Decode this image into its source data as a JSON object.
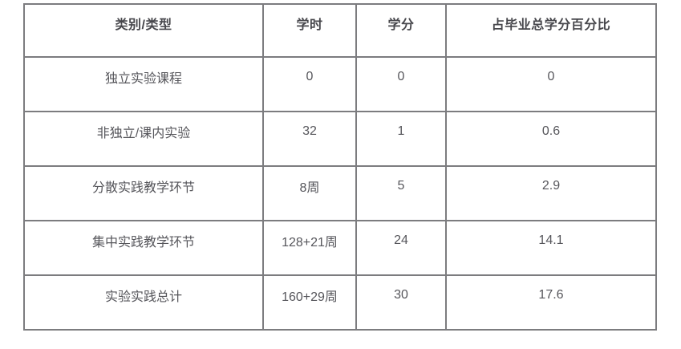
{
  "chart_data": {
    "type": "table",
    "title": "",
    "columns": [
      "类别/类型",
      "学时",
      "学分",
      "占毕业总学分百分比"
    ],
    "rows": [
      [
        "独立实验课程",
        "0",
        "0",
        "0"
      ],
      [
        "非独立/课内实验",
        "32",
        "1",
        "0.6"
      ],
      [
        "分散实践教学环节",
        "8周",
        "5",
        "2.9"
      ],
      [
        "集中实践教学环节",
        "128+21周",
        "24",
        "14.1"
      ],
      [
        "实验实践总计",
        "160+29周",
        "30",
        "17.6"
      ]
    ]
  },
  "table": {
    "headers": [
      "类别/类型",
      "学时",
      "学分",
      "占毕业总学分百分比"
    ],
    "rows": [
      {
        "category": "独立实验课程",
        "hours": "0",
        "credits": "0",
        "percentage": "0"
      },
      {
        "category": "非独立/课内实验",
        "hours": "32",
        "credits": "1",
        "percentage": "0.6"
      },
      {
        "category": "分散实践教学环节",
        "hours": "8周",
        "credits": "5",
        "percentage": "2.9"
      },
      {
        "category": "集中实践教学环节",
        "hours": "128+21周",
        "credits": "24",
        "percentage": "14.1"
      },
      {
        "category": "实验实践总计",
        "hours": "160+29周",
        "credits": "30",
        "percentage": "17.6"
      }
    ],
    "colors": {
      "border": "#7c7c7f",
      "header_text": "#47474c",
      "body_text": "#56565b",
      "background": "#ffffff"
    }
  }
}
